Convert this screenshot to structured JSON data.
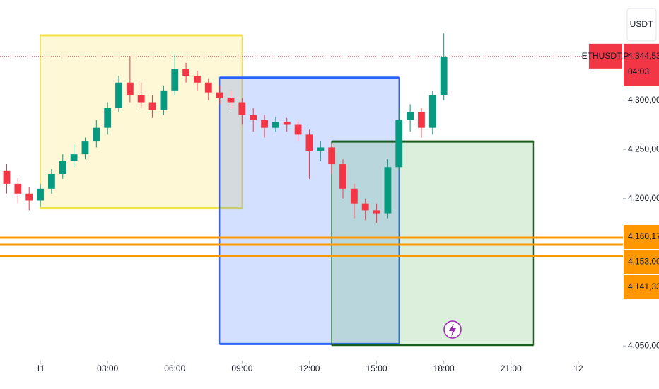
{
  "chart_data": {
    "type": "candlestick",
    "x": [
      -1.5,
      -1,
      -0.5,
      0,
      0.5,
      1,
      1.5,
      2,
      2.5,
      3,
      3.5,
      4,
      4.5,
      5,
      5.5,
      6,
      6.5,
      7,
      7.5,
      8,
      8.5,
      9,
      9.5,
      10,
      10.5,
      11,
      11.5,
      12,
      12.5,
      13,
      13.5,
      14,
      14.5,
      15,
      15.5,
      16,
      16.5,
      17,
      17.5,
      18
    ],
    "open": [
      4228,
      4215,
      4205,
      4198,
      4210,
      4225,
      4238,
      4245,
      4258,
      4272,
      4292,
      4318,
      4305,
      4298,
      4290,
      4310,
      4332,
      4325,
      4318,
      4308,
      4302,
      4298,
      4285,
      4280,
      4272,
      4278,
      4275,
      4265,
      4248,
      4252,
      4235,
      4210,
      4195,
      4188,
      4185,
      4232,
      4280,
      4288,
      4272,
      4305
    ],
    "high": [
      4235,
      4220,
      4212,
      4215,
      4230,
      4245,
      4255,
      4262,
      4280,
      4298,
      4325,
      4345,
      4318,
      4305,
      4315,
      4346,
      4338,
      4330,
      4322,
      4315,
      4310,
      4302,
      4292,
      4285,
      4283,
      4282,
      4280,
      4270,
      4258,
      4256,
      4240,
      4215,
      4200,
      4195,
      4240,
      4292,
      4296,
      4292,
      4310,
      4368
    ],
    "low": [
      4205,
      4195,
      4188,
      4192,
      4205,
      4220,
      4232,
      4240,
      4252,
      4265,
      4288,
      4298,
      4292,
      4282,
      4285,
      4305,
      4318,
      4310,
      4300,
      4296,
      4292,
      4275,
      4268,
      4262,
      4268,
      4268,
      4258,
      4220,
      4238,
      4225,
      4200,
      4180,
      4178,
      4175,
      4180,
      4228,
      4268,
      4262,
      4265,
      4300
    ],
    "close": [
      4215,
      4205,
      4198,
      4210,
      4225,
      4238,
      4245,
      4258,
      4272,
      4292,
      4318,
      4305,
      4298,
      4290,
      4310,
      4332,
      4325,
      4318,
      4308,
      4302,
      4298,
      4285,
      4280,
      4272,
      4278,
      4275,
      4265,
      4248,
      4252,
      4235,
      4210,
      4195,
      4188,
      4185,
      4232,
      4280,
      4288,
      4272,
      4305,
      4344.53
    ],
    "up_color": "#089981",
    "down_color": "#f23645",
    "xlim": [
      -1.8,
      25.96
    ],
    "xticks": [
      {
        "value": 0,
        "label": "11"
      },
      {
        "value": 3,
        "label": "03:00"
      },
      {
        "value": 6,
        "label": "06:00"
      },
      {
        "value": 9,
        "label": "09:00"
      },
      {
        "value": 12,
        "label": "12:00"
      },
      {
        "value": 15,
        "label": "15:00"
      },
      {
        "value": 18,
        "label": "18:00"
      },
      {
        "value": 21,
        "label": "21:00"
      },
      {
        "value": 24,
        "label": "12"
      }
    ],
    "ylim": [
      4035,
      4402
    ],
    "yticks": [
      {
        "value": 4300,
        "label": "4.300,00"
      },
      {
        "value": 4250,
        "label": "4.250,00"
      },
      {
        "value": 4200,
        "label": "4.200,00"
      },
      {
        "value": 4050,
        "label": "4.050,00"
      }
    ],
    "zones": [
      {
        "fill": "#fff8d6",
        "stroke": "#f5e04a",
        "x": [
          0,
          9
        ],
        "y": [
          4190,
          4366
        ]
      },
      {
        "fill": "rgba(41,98,255,0.2)",
        "stroke": "#2962ff",
        "x": [
          8,
          16
        ],
        "y": [
          4052,
          4323
        ]
      },
      {
        "fill": "rgba(76,175,80,0.2)",
        "stroke": "#1b5e20",
        "x": [
          13,
          22
        ],
        "y": [
          4051,
          4258
        ]
      }
    ],
    "levels": {
      "values": [
        4160.17,
        4153.0,
        4141.33
      ],
      "value_labels": [
        "4.160,17",
        "4.153,00",
        "4.141,33"
      ],
      "color": "#ff9800"
    },
    "last": {
      "value": 4344.53,
      "value_label": "4.344,53",
      "countdown": "04:03",
      "symbol": "ETHUSDT.P",
      "color": "#f23645"
    },
    "currency": "USDT"
  }
}
